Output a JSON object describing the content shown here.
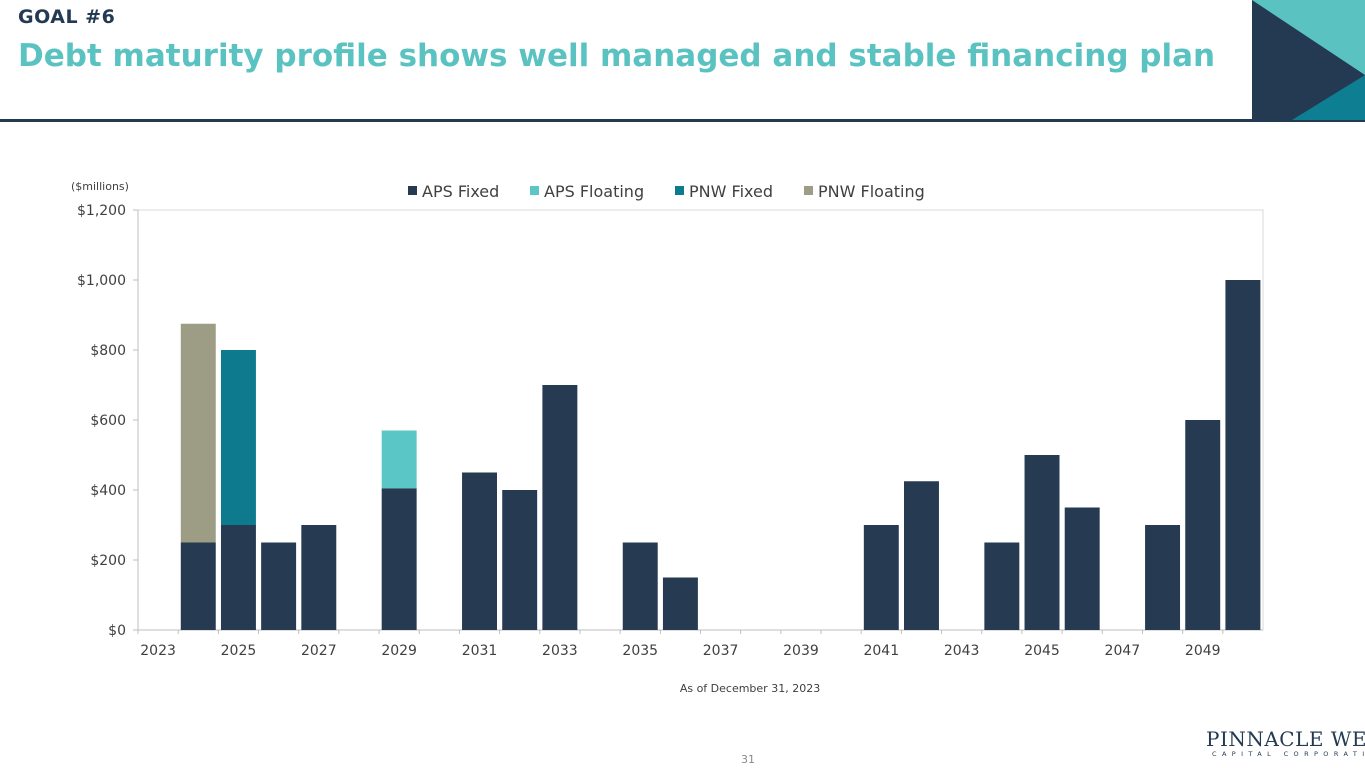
{
  "header": {
    "goal": "GOAL #6",
    "title": "Debt maturity profile shows well managed and stable financing plan"
  },
  "chart_data": {
    "type": "bar",
    "stacked": true,
    "title": "",
    "xlabel": "As of December 31, 2023",
    "ylabel": "($millions)",
    "ylim": [
      0,
      1200
    ],
    "yticks": [
      0,
      200,
      400,
      600,
      800,
      1000,
      1200
    ],
    "ytick_labels": [
      "$0",
      "$200",
      "$400",
      "$600",
      "$800",
      "$1,000",
      "$1,200"
    ],
    "xtick_labels": [
      "2023",
      "2025",
      "2027",
      "2029",
      "2031",
      "2033",
      "2035",
      "2037",
      "2039",
      "2041",
      "2043",
      "2045",
      "2047",
      "2049"
    ],
    "categories": [
      2024,
      2025,
      2026,
      2027,
      2028,
      2029,
      2030,
      2031,
      2032,
      2033,
      2034,
      2035,
      2036,
      2037,
      2038,
      2039,
      2040,
      2041,
      2042,
      2043,
      2044,
      2045,
      2046,
      2047,
      2048,
      2049,
      2050
    ],
    "legend_position": "top",
    "series": [
      {
        "name": "APS Fixed",
        "color": "#263a52",
        "values": [
          250,
          300,
          250,
          300,
          0,
          405,
          0,
          450,
          400,
          700,
          0,
          250,
          150,
          0,
          0,
          0,
          0,
          300,
          425,
          0,
          250,
          500,
          350,
          0,
          300,
          600,
          1000
        ]
      },
      {
        "name": "APS Floating",
        "color": "#5bc6c6",
        "values": [
          0,
          0,
          0,
          0,
          0,
          165,
          0,
          0,
          0,
          0,
          0,
          0,
          0,
          0,
          0,
          0,
          0,
          0,
          0,
          0,
          0,
          0,
          0,
          0,
          0,
          0,
          0
        ]
      },
      {
        "name": "PNW Fixed",
        "color": "#0d7a8e",
        "values": [
          0,
          500,
          0,
          0,
          0,
          0,
          0,
          0,
          0,
          0,
          0,
          0,
          0,
          0,
          0,
          0,
          0,
          0,
          0,
          0,
          0,
          0,
          0,
          0,
          0,
          0,
          0
        ]
      },
      {
        "name": "PNW Floating",
        "color": "#9d9c85",
        "values": [
          625,
          0,
          0,
          0,
          0,
          0,
          0,
          0,
          0,
          0,
          0,
          0,
          0,
          0,
          0,
          0,
          0,
          0,
          0,
          0,
          0,
          0,
          0,
          0,
          0,
          0,
          0
        ]
      }
    ]
  },
  "footer": {
    "page_number": "31",
    "logo_name": "PINNACLE WEST",
    "logo_sub": "CAPITAL CORPORATION"
  }
}
